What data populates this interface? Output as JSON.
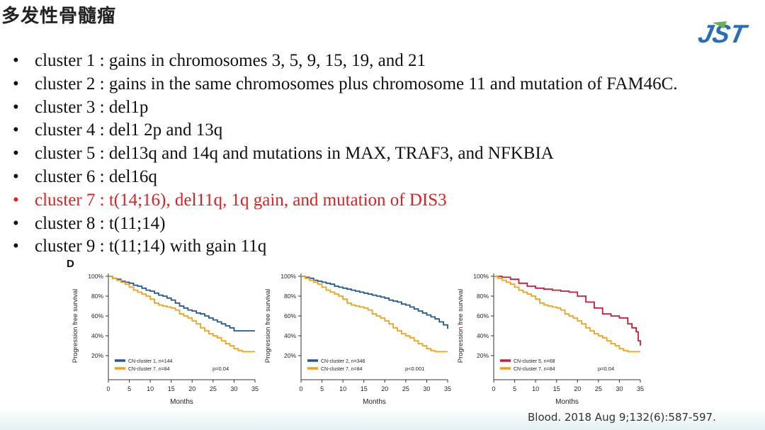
{
  "slide": {
    "title": "多发性骨髓瘤",
    "logo_text": "JST",
    "figure_letter": "D",
    "citation": "Blood. 2018 Aug 9;132(6):587-597."
  },
  "bullets": [
    {
      "cluster": "cluster 1",
      "text": "gains in chromosomes 3, 5, 9, 15, 19, and 21",
      "highlight": false
    },
    {
      "cluster": "cluster 2",
      "text": "gains in the same chromosomes plus chromosome 11 and mutation of FAM46C.",
      "highlight": false
    },
    {
      "cluster": "cluster 3",
      "text": "del1p",
      "highlight": false
    },
    {
      "cluster": "cluster 4",
      "text": "del1 2p and 13q",
      "highlight": false
    },
    {
      "cluster": "cluster 5",
      "text": "del13q and 14q and mutations in MAX, TRAF3, and NFKBIA",
      "highlight": false
    },
    {
      "cluster": "cluster 6",
      "text": "del16q",
      "highlight": false
    },
    {
      "cluster": "cluster 7",
      "text": " t(14;16), del11q, 1q gain, and mutation of DIS3",
      "highlight": true
    },
    {
      "cluster": "cluster 8",
      "text": "t(11;14)",
      "highlight": false
    },
    {
      "cluster": "cluster 9",
      "text": "t(11;14) with gain 11q",
      "highlight": false
    }
  ],
  "colors": {
    "cluster7_highlight": "#e02020",
    "blue_curve": "#24588f",
    "orange_curve": "#f0a31c",
    "red_curve": "#c41e3a"
  },
  "chart_data": [
    {
      "type": "line",
      "xlabel": "Months",
      "ylabel": "Progression free survival",
      "xlim": [
        0,
        35
      ],
      "ylim": [
        0,
        100
      ],
      "x_ticks": [
        0,
        5,
        10,
        15,
        20,
        25,
        30,
        35
      ],
      "y_ticks": [
        "20%",
        "40%",
        "60%",
        "80%",
        "100%"
      ],
      "y_tick_values": [
        20,
        40,
        60,
        80,
        100
      ],
      "p_value": "p=0.04",
      "series": [
        {
          "name": "CN-cluster 1, n=144",
          "color": "#24588f",
          "x": [
            0,
            1,
            2,
            3,
            4,
            5,
            6,
            7,
            8,
            9,
            10,
            11,
            12,
            13,
            14,
            15,
            16,
            17,
            18,
            19,
            20,
            21,
            22,
            23,
            24,
            25,
            26,
            27,
            28,
            29,
            30,
            31,
            35
          ],
          "y": [
            100,
            98,
            97,
            95,
            94,
            93,
            91,
            90,
            88,
            86,
            85,
            83,
            81,
            80,
            78,
            76,
            73,
            70,
            68,
            66,
            65,
            63,
            62,
            60,
            58,
            56,
            54,
            52,
            50,
            48,
            45,
            45,
            45
          ]
        },
        {
          "name": "CN-cluster 7, n=84",
          "color": "#f0a31c",
          "x": [
            0,
            1,
            2,
            3,
            4,
            5,
            6,
            7,
            8,
            9,
            10,
            11,
            12,
            13,
            14,
            15,
            16,
            17,
            18,
            19,
            20,
            21,
            22,
            23,
            24,
            25,
            26,
            27,
            28,
            29,
            30,
            31,
            32,
            35
          ],
          "y": [
            100,
            98,
            96,
            94,
            92,
            89,
            86,
            84,
            82,
            80,
            77,
            73,
            71,
            70,
            69,
            68,
            66,
            62,
            60,
            58,
            55,
            52,
            48,
            45,
            42,
            40,
            38,
            35,
            32,
            30,
            27,
            25,
            24,
            24
          ]
        }
      ]
    },
    {
      "type": "line",
      "xlabel": "Months",
      "ylabel": "Progression free survival",
      "xlim": [
        0,
        35
      ],
      "ylim": [
        0,
        100
      ],
      "x_ticks": [
        0,
        5,
        10,
        15,
        20,
        25,
        30,
        35
      ],
      "y_ticks": [
        "20%",
        "40%",
        "60%",
        "80%",
        "100%"
      ],
      "y_tick_values": [
        20,
        40,
        60,
        80,
        100
      ],
      "p_value": "p<0.001",
      "series": [
        {
          "name": "CN-cluster 2, n=346",
          "color": "#24588f",
          "x": [
            0,
            1,
            2,
            3,
            4,
            5,
            6,
            7,
            8,
            9,
            10,
            11,
            12,
            13,
            14,
            15,
            16,
            17,
            18,
            19,
            20,
            21,
            22,
            23,
            24,
            25,
            26,
            27,
            28,
            29,
            30,
            31,
            32,
            33,
            34,
            35
          ],
          "y": [
            100,
            99,
            98,
            96,
            95,
            94,
            93,
            92,
            90,
            89,
            88,
            87,
            86,
            85,
            84,
            83,
            82,
            81,
            80,
            79,
            78,
            76,
            75,
            74,
            72,
            71,
            69,
            67,
            65,
            63,
            61,
            59,
            57,
            54,
            51,
            47
          ]
        },
        {
          "name": "CN-cluster 7, n=84",
          "color": "#f0a31c",
          "x": [
            0,
            1,
            2,
            3,
            4,
            5,
            6,
            7,
            8,
            9,
            10,
            11,
            12,
            13,
            14,
            15,
            16,
            17,
            18,
            19,
            20,
            21,
            22,
            23,
            24,
            25,
            26,
            27,
            28,
            29,
            30,
            31,
            32,
            35
          ],
          "y": [
            100,
            98,
            96,
            94,
            92,
            89,
            86,
            84,
            82,
            80,
            77,
            73,
            71,
            70,
            69,
            68,
            66,
            62,
            60,
            58,
            55,
            52,
            48,
            45,
            42,
            40,
            38,
            35,
            32,
            30,
            27,
            25,
            24,
            24
          ]
        }
      ]
    },
    {
      "type": "line",
      "xlabel": "Months",
      "ylabel": "Progression free survival",
      "xlim": [
        0,
        35
      ],
      "ylim": [
        0,
        100
      ],
      "x_ticks": [
        0,
        5,
        10,
        15,
        20,
        25,
        30,
        35
      ],
      "y_ticks": [
        "20%",
        "40%",
        "60%",
        "80%",
        "100%"
      ],
      "y_tick_values": [
        20,
        40,
        60,
        80,
        100
      ],
      "p_value": "p=0.04",
      "series": [
        {
          "name": "CN-cluster 5, n=68",
          "color": "#c41e3a",
          "x": [
            0,
            2,
            4,
            6,
            8,
            10,
            12,
            14,
            16,
            18,
            20,
            22,
            24,
            26,
            28,
            30,
            32,
            33,
            34,
            34.5,
            35
          ],
          "y": [
            100,
            99,
            97,
            93,
            90,
            88,
            87,
            86,
            85,
            84,
            80,
            74,
            68,
            62,
            60,
            58,
            52,
            48,
            44,
            35,
            30
          ]
        },
        {
          "name": "CN-cluster 7, n=84",
          "color": "#f0a31c",
          "x": [
            0,
            1,
            2,
            3,
            4,
            5,
            6,
            7,
            8,
            9,
            10,
            11,
            12,
            13,
            14,
            15,
            16,
            17,
            18,
            19,
            20,
            21,
            22,
            23,
            24,
            25,
            26,
            27,
            28,
            29,
            30,
            31,
            32,
            35
          ],
          "y": [
            100,
            98,
            96,
            94,
            92,
            89,
            86,
            84,
            82,
            80,
            77,
            73,
            71,
            70,
            69,
            68,
            66,
            62,
            60,
            58,
            55,
            52,
            48,
            45,
            42,
            40,
            38,
            35,
            32,
            30,
            27,
            25,
            24,
            24
          ]
        }
      ]
    }
  ]
}
